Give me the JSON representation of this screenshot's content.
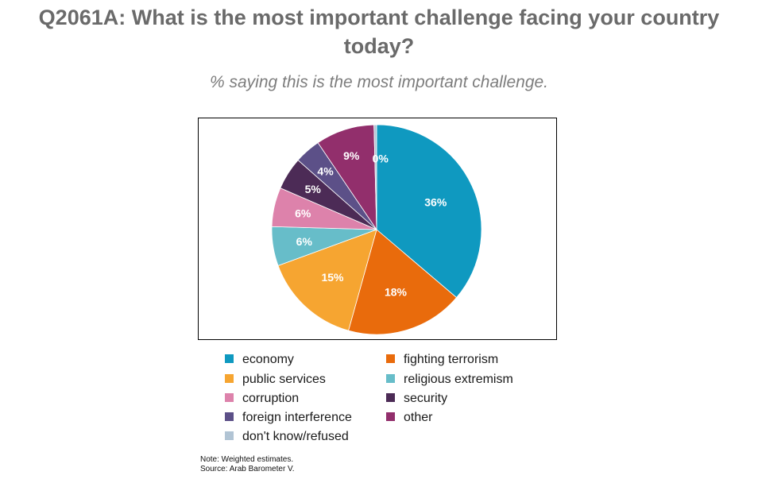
{
  "chart_data": {
    "type": "pie",
    "title": "Q2061A: What is the most important challenge facing your country today?",
    "subtitle": "% saying this is the most important challenge.",
    "slices": [
      {
        "name": "economy",
        "value": 36,
        "label": "36%",
        "color": "#0f99c0"
      },
      {
        "name": "fighting terrorism",
        "value": 18,
        "label": "18%",
        "color": "#e96b0c"
      },
      {
        "name": "public services",
        "value": 15,
        "label": "15%",
        "color": "#f6a531"
      },
      {
        "name": "religious extremism",
        "value": 6,
        "label": "6%",
        "color": "#67bdc9"
      },
      {
        "name": "corruption",
        "value": 6,
        "label": "6%",
        "color": "#dd82ab"
      },
      {
        "name": "security",
        "value": 5,
        "label": "5%",
        "color": "#4c2b56"
      },
      {
        "name": "foreign interference",
        "value": 4,
        "label": "4%",
        "color": "#5c5088"
      },
      {
        "name": "other",
        "value": 9,
        "label": "9%",
        "color": "#922f6c"
      },
      {
        "name": "don't know/refused",
        "value": 0.4,
        "label": "0%",
        "color": "#b1c4d4"
      }
    ],
    "legend": [
      {
        "name": "economy",
        "color": "#0f99c0"
      },
      {
        "name": "fighting terrorism",
        "color": "#e96b0c"
      },
      {
        "name": "public services",
        "color": "#f6a531"
      },
      {
        "name": "religious extremism",
        "color": "#67bdc9"
      },
      {
        "name": "corruption",
        "color": "#dd82ab"
      },
      {
        "name": "security",
        "color": "#4c2b56"
      },
      {
        "name": "foreign interference",
        "color": "#5c5088"
      },
      {
        "name": "other",
        "color": "#922f6c"
      },
      {
        "name": "don't know/refused",
        "color": "#b1c4d4"
      }
    ],
    "legend_placement": "bottom"
  },
  "note": {
    "line1": "Note: Weighted estimates.",
    "line2": "Source: Arab Barometer V."
  }
}
